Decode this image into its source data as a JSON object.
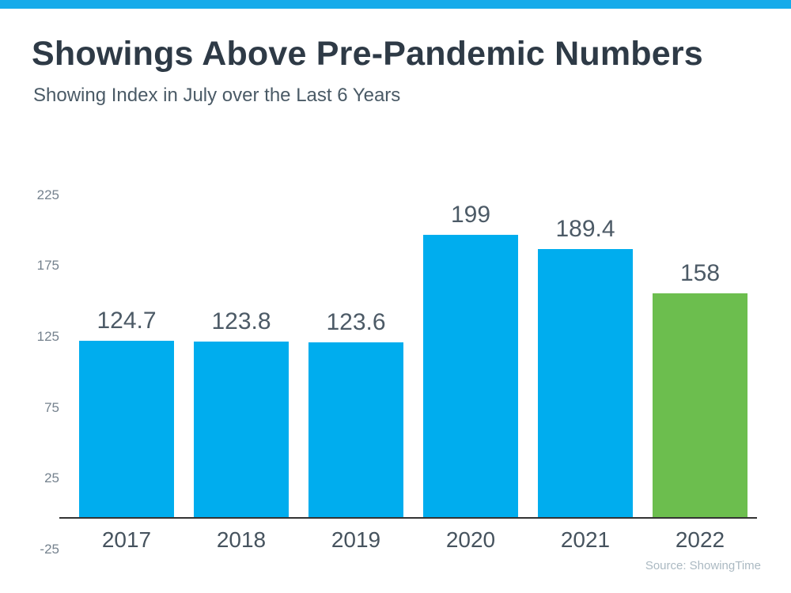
{
  "page": {
    "accent_bar_color": "#17abea"
  },
  "header": {
    "title": "Showings Above Pre-Pandemic Numbers",
    "subtitle": "Showing Index in July over the Last 6 Years"
  },
  "chart_data": {
    "type": "bar",
    "title": "Showings Above Pre-Pandemic Numbers",
    "subtitle": "Showing Index in July over the Last 6 Years",
    "categories": [
      "2017",
      "2018",
      "2019",
      "2020",
      "2021",
      "2022"
    ],
    "values": [
      124.7,
      123.8,
      123.6,
      199,
      189.4,
      158
    ],
    "value_labels": [
      "124.7",
      "123.8",
      "123.6",
      "199",
      "189.4",
      "158"
    ],
    "bar_colors": [
      "#00adee",
      "#00adee",
      "#00adee",
      "#00adee",
      "#00adee",
      "#6cbe4e"
    ],
    "ylim": [
      -25,
      225
    ],
    "yticks": [
      225,
      175,
      125,
      75,
      25,
      -25
    ],
    "grid": false,
    "legend": null,
    "xlabel": "",
    "ylabel": "",
    "source": "Source: ShowingTime"
  },
  "footer": {
    "source": "Source: ShowingTime"
  }
}
